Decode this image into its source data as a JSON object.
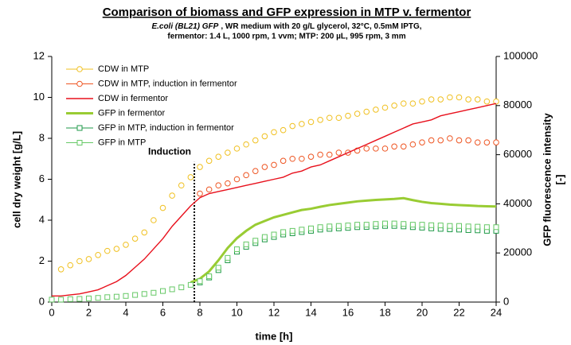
{
  "chart_data": {
    "type": "line",
    "title": "Comparison of biomass and GFP expression in MTP v. fermentor",
    "subtitle": [
      {
        "italic": "E.coli (BL21) GFP",
        "text": ", WR medium with 20 g/L glycerol, 32°C, 0.5mM IPTG,"
      },
      "fermentor: 1.4 L, 1000 rpm, 1 vvm; MTP: 200 µL, 995 rpm, 3 mm"
    ],
    "xlabel": "time [h]",
    "ylabel": "cell dry weight [g/L]",
    "y2label": [
      "GFP fluorescence intensity",
      "[-]"
    ],
    "xlim": [
      0,
      24
    ],
    "xticks": [
      0,
      2,
      4,
      6,
      8,
      10,
      12,
      14,
      16,
      18,
      20,
      22,
      24
    ],
    "ylim": [
      0,
      12
    ],
    "yticks": [
      0,
      2,
      4,
      6,
      8,
      10,
      12
    ],
    "y2lim": [
      0,
      100000
    ],
    "y2ticks": [
      0,
      20000,
      40000,
      60000,
      80000,
      100000
    ],
    "grid": false,
    "legend": "upper left",
    "annotations": [
      {
        "text": "Induction",
        "x": 7.7
      }
    ],
    "x": [
      0,
      0.5,
      1,
      1.5,
      2,
      2.5,
      3,
      3.5,
      4,
      4.5,
      5,
      5.5,
      6,
      6.5,
      7,
      7.5,
      8,
      8.5,
      9,
      9.5,
      10,
      10.5,
      11,
      11.5,
      12,
      12.5,
      13,
      13.5,
      14,
      14.5,
      15,
      15.5,
      16,
      16.5,
      17,
      17.5,
      18,
      18.5,
      19,
      19.5,
      20,
      20.5,
      21,
      21.5,
      22,
      22.5,
      23,
      23.5,
      24
    ],
    "series": [
      {
        "name": "CDW in MTP",
        "color": "#f0c020",
        "marker": "circle",
        "axis": "y",
        "values": [
          null,
          1.6,
          1.8,
          2.0,
          2.1,
          2.3,
          2.5,
          2.6,
          2.8,
          3.1,
          3.4,
          4.0,
          4.6,
          5.2,
          5.7,
          6.1,
          6.6,
          6.9,
          7.1,
          7.3,
          7.5,
          7.7,
          7.9,
          8.1,
          8.3,
          8.4,
          8.6,
          8.7,
          8.8,
          8.9,
          9.0,
          9.0,
          9.1,
          9.2,
          9.3,
          9.4,
          9.5,
          9.6,
          9.7,
          9.7,
          9.8,
          9.9,
          9.9,
          10.0,
          10.0,
          9.9,
          9.9,
          9.8,
          9.8
        ]
      },
      {
        "name": "CDW in MTP, induction in fermentor",
        "color": "#ee5522",
        "marker": "circle",
        "axis": "y",
        "values": [
          null,
          null,
          null,
          null,
          null,
          null,
          null,
          null,
          null,
          null,
          null,
          null,
          null,
          null,
          null,
          null,
          5.3,
          5.5,
          5.7,
          5.8,
          6.0,
          6.2,
          6.4,
          6.6,
          6.7,
          6.9,
          7.0,
          7.0,
          7.1,
          7.2,
          7.2,
          7.3,
          7.3,
          7.4,
          7.5,
          7.5,
          7.5,
          7.6,
          7.6,
          7.7,
          7.8,
          7.9,
          7.9,
          8.0,
          7.9,
          7.9,
          7.8,
          7.8,
          7.8
        ]
      },
      {
        "name": "CDW in fermentor",
        "color": "#e8101c",
        "marker": "none",
        "axis": "y",
        "values": [
          0.3,
          0.3,
          0.35,
          0.4,
          0.5,
          0.6,
          0.8,
          1.0,
          1.3,
          1.7,
          2.1,
          2.6,
          3.1,
          3.7,
          4.2,
          4.7,
          5.1,
          5.3,
          5.4,
          5.5,
          5.6,
          5.7,
          5.8,
          5.9,
          6.0,
          6.1,
          6.3,
          6.4,
          6.6,
          6.7,
          6.9,
          7.1,
          7.3,
          7.5,
          7.7,
          7.9,
          8.1,
          8.3,
          8.5,
          8.7,
          8.8,
          8.9,
          9.1,
          9.2,
          9.3,
          9.4,
          9.5,
          9.6,
          9.7
        ]
      },
      {
        "name": "GFP in fermentor",
        "color": "#99cc33",
        "marker": "none",
        "axis": "y2",
        "values": [
          null,
          null,
          null,
          null,
          null,
          null,
          null,
          null,
          null,
          null,
          null,
          null,
          null,
          null,
          null,
          8000,
          9500,
          12500,
          17000,
          22000,
          26000,
          29000,
          31500,
          33000,
          34500,
          35500,
          36500,
          37500,
          38000,
          38800,
          39500,
          40000,
          40500,
          41000,
          41300,
          41600,
          41800,
          42000,
          42300,
          41500,
          40800,
          40300,
          40000,
          39700,
          39500,
          39300,
          39100,
          39000,
          38900
        ]
      },
      {
        "name": "GFP in MTP, induction in fermentor",
        "color": "#1f9a48",
        "marker": "square",
        "axis": "y2",
        "values": [
          null,
          null,
          null,
          null,
          null,
          null,
          null,
          null,
          null,
          null,
          null,
          null,
          null,
          null,
          null,
          null,
          8000,
          10000,
          13000,
          17000,
          20500,
          22500,
          24000,
          25500,
          26500,
          27500,
          28000,
          28500,
          29000,
          29500,
          29800,
          30000,
          30200,
          30500,
          30600,
          30800,
          31000,
          31000,
          30800,
          30500,
          30300,
          30000,
          29800,
          29600,
          29500,
          29300,
          29200,
          29000,
          29000
        ]
      },
      {
        "name": "GFP in MTP",
        "color": "#66c866",
        "marker": "square",
        "axis": "y2",
        "values": [
          1000,
          1000,
          1200,
          1300,
          1500,
          1700,
          2000,
          2200,
          2500,
          2900,
          3300,
          3800,
          4500,
          5200,
          6000,
          7000,
          8500,
          10500,
          14000,
          18000,
          21500,
          23500,
          25000,
          26500,
          27500,
          28500,
          29000,
          29500,
          30000,
          30500,
          30800,
          31000,
          31200,
          31500,
          31500,
          31800,
          32000,
          32000,
          31800,
          31500,
          31500,
          31300,
          31200,
          31000,
          31000,
          30800,
          30700,
          30500,
          30500
        ]
      }
    ]
  }
}
